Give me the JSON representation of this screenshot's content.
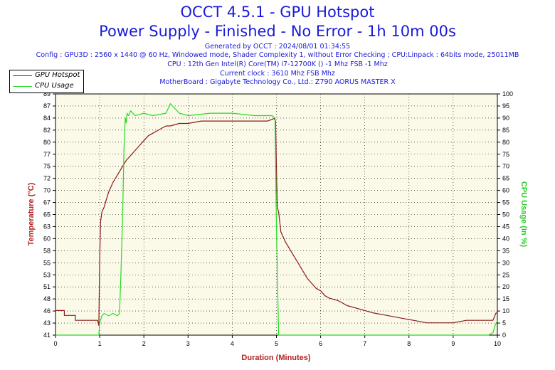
{
  "header": {
    "title": "OCCT 4.5.1 - GPU Hotspot",
    "subtitle": "Power Supply - Finished - No Error - 1h 10m 00s",
    "lines": [
      "Generated by OCCT : 2024/08/01 01:34:55",
      "Config : GPU3D : 2560 x 1440 @ 60 Hz, Windowed mode, Shader Complexity 1, without Error Checking ; CPU:Linpack : 64bits mode, 25011MB",
      "CPU : 12th Gen Intel(R) Core(TM) i7-12700K () -1 Mhz FSB -1 Mhz",
      "Current clock : 3610 Mhz FSB  Mhz",
      "MotherBoard : Gigabyte Technology Co., Ltd.: Z790 AORUS MASTER X"
    ]
  },
  "legend": {
    "position": "top-left",
    "items": [
      "GPU Hotspot",
      "CPU Usage"
    ]
  },
  "chart_data": {
    "type": "line",
    "xlabel": "Duration (Minutes)",
    "ylabel": "Temperature (°C)",
    "ylabel_right": "CPU Usage (in %)",
    "xlim": [
      0,
      10
    ],
    "ylim": [
      41,
      90
    ],
    "ylim_right": [
      0,
      100
    ],
    "grid": true,
    "x_ticks": [
      "0",
      "1",
      "2",
      "3",
      "4",
      "5",
      "6",
      "7",
      "8",
      "9",
      "10"
    ],
    "y_ticks": [
      "41",
      "43",
      "46",
      "48",
      "51",
      "53",
      "55",
      "58",
      "60",
      "63",
      "65",
      "67",
      "70",
      "72",
      "75",
      "77",
      "80",
      "82",
      "84",
      "87",
      "89"
    ],
    "y_ticks_right": [
      "0",
      "5",
      "10",
      "15",
      "20",
      "25",
      "30",
      "35",
      "40",
      "45",
      "50",
      "55",
      "60",
      "65",
      "70",
      "75",
      "80",
      "85",
      "90",
      "95",
      "100"
    ],
    "colors": {
      "GPU Hotspot": "#8b1a1a",
      "CPU Usage": "#22dd22"
    },
    "series": [
      {
        "name": "GPU Hotspot",
        "axis": "left",
        "x": [
          0,
          0.2,
          0.2,
          0.45,
          0.45,
          0.95,
          0.98,
          1.0,
          1.02,
          1.05,
          1.1,
          1.2,
          1.3,
          1.4,
          1.5,
          1.6,
          1.7,
          1.8,
          1.9,
          2.0,
          2.1,
          2.2,
          2.3,
          2.4,
          2.5,
          2.6,
          2.8,
          3.0,
          3.3,
          3.6,
          4.0,
          4.4,
          4.8,
          4.95,
          4.98,
          5.0,
          5.02,
          5.05,
          5.1,
          5.2,
          5.3,
          5.4,
          5.5,
          5.6,
          5.7,
          5.8,
          5.9,
          6.0,
          6.1,
          6.2,
          6.4,
          6.6,
          6.8,
          7.0,
          7.2,
          7.5,
          7.8,
          8.1,
          8.4,
          8.7,
          9.0,
          9.3,
          9.6,
          9.9,
          9.97,
          10.0
        ],
        "values": [
          46.0,
          46.0,
          45.0,
          45.0,
          44.0,
          44.0,
          43.0,
          56.0,
          64.0,
          66.0,
          67.0,
          70.0,
          72.0,
          73.5,
          75.0,
          76.5,
          77.5,
          78.5,
          79.5,
          80.5,
          81.5,
          82.0,
          82.5,
          83.0,
          83.5,
          83.5,
          84.0,
          84.0,
          84.5,
          84.5,
          84.5,
          84.5,
          84.5,
          85.0,
          84.5,
          75.0,
          67.0,
          66.0,
          62.0,
          60.0,
          58.5,
          57.0,
          55.5,
          54.0,
          52.5,
          51.5,
          50.5,
          50.0,
          49.0,
          48.5,
          48.0,
          47.0,
          46.5,
          46.0,
          45.5,
          45.0,
          44.5,
          44.0,
          43.5,
          43.5,
          43.5,
          44.0,
          44.0,
          44.0,
          45.5,
          45.5
        ]
      },
      {
        "name": "CPU Usage",
        "axis": "right",
        "x": [
          0,
          0.5,
          0.95,
          0.98,
          1.0,
          1.05,
          1.1,
          1.2,
          1.3,
          1.4,
          1.45,
          1.48,
          1.52,
          1.55,
          1.58,
          1.6,
          1.62,
          1.65,
          1.7,
          1.8,
          2.0,
          2.2,
          2.5,
          2.6,
          2.8,
          3.0,
          3.5,
          4.0,
          4.5,
          4.9,
          4.97,
          5.0,
          5.05,
          5.5,
          6.0,
          7.0,
          8.0,
          9.0,
          9.5,
          9.8,
          9.9,
          9.95,
          10.0
        ],
        "values": [
          0,
          0,
          0,
          0,
          5,
          8,
          9,
          8,
          9,
          8,
          9,
          25,
          50,
          78,
          90,
          88,
          92,
          91,
          93,
          91,
          92,
          91,
          92,
          96,
          92,
          91,
          92,
          92,
          91,
          91,
          90,
          45,
          0,
          0,
          0,
          0,
          0,
          0,
          0,
          0,
          1,
          4,
          6
        ]
      }
    ]
  }
}
